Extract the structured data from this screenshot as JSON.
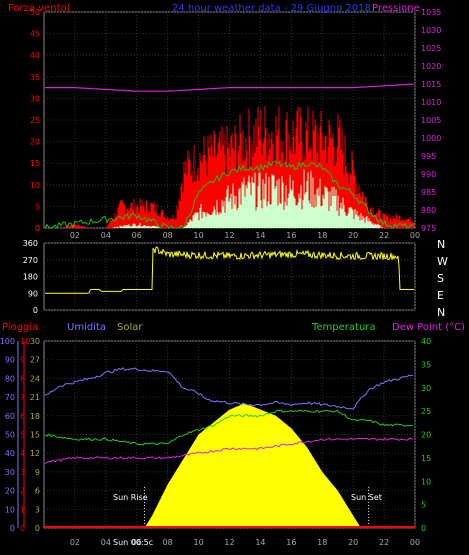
{
  "chart_data": [
    {
      "type": "line",
      "title": "24 hour weather data - 29 Giugno 2018",
      "left_label": "Forza vento(",
      "right_label": "Pressione",
      "x_ticks": [
        "02",
        "04",
        "06",
        "08",
        "10",
        "12",
        "14",
        "16",
        "18",
        "20",
        "22",
        "00"
      ],
      "yleft_ticks": [
        0,
        5,
        10,
        15,
        20,
        25,
        30,
        35,
        40,
        45,
        50
      ],
      "yright_ticks": [
        975,
        980,
        985,
        990,
        995,
        1000,
        1005,
        1010,
        1015,
        1020,
        1025,
        1030,
        1035
      ],
      "ylim_left": [
        0,
        50
      ],
      "ylim_right": [
        975,
        1035
      ],
      "colors": {
        "gust": "#ff0000",
        "wind": "#ccffcc",
        "avg": "#22bb22",
        "pressure": "#dd22dd",
        "left_axis": "#ff0000",
        "right_axis": "#dd22dd",
        "title": "#3333ff"
      },
      "series": [
        {
          "name": "Pressione",
          "x": [
            0,
            2,
            4,
            6,
            8,
            10,
            12,
            14,
            16,
            18,
            20,
            22,
            24
          ],
          "values": [
            1014,
            1014,
            1013.5,
            1013,
            1013,
            1013.5,
            1014,
            1014,
            1014,
            1014,
            1014,
            1014.5,
            1015
          ]
        },
        {
          "name": "gust",
          "x": [
            0,
            1,
            2,
            3,
            4,
            5,
            6,
            7,
            8,
            8.5,
            9,
            10,
            11,
            12,
            13,
            14,
            15,
            16,
            17,
            18,
            19,
            20,
            21,
            22,
            23,
            24
          ],
          "values": [
            0,
            0,
            1,
            0,
            0,
            6,
            6,
            6,
            3,
            3,
            15,
            19,
            20,
            21,
            24,
            26,
            26,
            25,
            25,
            24,
            24,
            15,
            6,
            3,
            3,
            2
          ]
        },
        {
          "name": "avg",
          "x": [
            0,
            4,
            6,
            8,
            9,
            10,
            11,
            12,
            13,
            14,
            15,
            16,
            17,
            18,
            19,
            20,
            21,
            22,
            24
          ],
          "values": [
            0,
            2,
            3,
            0,
            0,
            8,
            11,
            13,
            14,
            14,
            15,
            14,
            15,
            14,
            10,
            8,
            4,
            1,
            0
          ]
        },
        {
          "name": "wind",
          "x": [
            0,
            4,
            6,
            8,
            9,
            10,
            11,
            12,
            13,
            14,
            15,
            16,
            17,
            18,
            19,
            20,
            21,
            22,
            24
          ],
          "values": [
            0,
            0,
            1,
            0,
            0,
            4,
            6,
            8,
            10,
            10,
            11,
            10,
            11,
            9,
            7,
            4,
            2,
            0,
            0
          ]
        }
      ]
    },
    {
      "type": "line",
      "right_labels": [
        "N",
        "W",
        "S",
        "E",
        "N"
      ],
      "yleft_ticks": [
        0,
        90,
        180,
        270,
        360
      ],
      "ylim": [
        0,
        360
      ],
      "colors": {
        "direction": "#ffff00",
        "axis": "#ffffff"
      },
      "series": [
        {
          "name": "direction",
          "x": [
            0,
            2.9,
            3.0,
            3.6,
            3.7,
            5.0,
            5.1,
            7.0,
            7.05,
            8,
            12,
            16,
            20,
            22,
            22.95,
            23.0,
            24
          ],
          "values": [
            90,
            90,
            110,
            110,
            100,
            100,
            110,
            110,
            330,
            300,
            290,
            300,
            290,
            290,
            290,
            110,
            110
          ]
        }
      ]
    },
    {
      "type": "area",
      "labels": {
        "pioggia": "Pioggia",
        "umidita": "Umidita",
        "solar": "Solar",
        "temperatura": "Temperatura",
        "dewpoint": "Dew Point (°C)",
        "sunrise": "Sun Rise",
        "sunset": "Sun Set",
        "sunmid": "Sun 00:5c"
      },
      "x_ticks": [
        "02",
        "04",
        "06",
        "08",
        "10",
        "12",
        "14",
        "16",
        "18",
        "20",
        "22",
        "00"
      ],
      "pioggia_ticks": [
        0,
        1,
        2,
        3,
        4,
        5,
        6,
        7,
        8,
        9,
        10
      ],
      "umidita_ticks": [
        0,
        10,
        20,
        30,
        40,
        50,
        60,
        70,
        80,
        90,
        100
      ],
      "solar_ticks": [
        0,
        3,
        6,
        9,
        12,
        15,
        18,
        21,
        24,
        27,
        30
      ],
      "temp_ticks": [
        0,
        5,
        10,
        15,
        20,
        25,
        30,
        35,
        40
      ],
      "colors": {
        "pioggia": "#ff0000",
        "umidita": "#7777ff",
        "solar": "#ffff00",
        "temperatura": "#22cc22",
        "dewpoint": "#dd22dd",
        "solar_axis": "#aaaa44"
      },
      "series": [
        {
          "name": "humidity",
          "x": [
            0,
            1,
            2,
            3,
            4,
            5,
            6,
            7,
            8,
            9,
            10,
            10.5,
            11,
            12,
            13,
            14,
            15,
            16,
            17,
            18,
            19,
            20,
            21,
            22,
            23,
            24
          ],
          "values": [
            70,
            76,
            78,
            80,
            83,
            85,
            85,
            84,
            84,
            75,
            72,
            69,
            68,
            67,
            66,
            66,
            67,
            66,
            67,
            66,
            65,
            64,
            74,
            78,
            80,
            82
          ]
        },
        {
          "name": "temperature",
          "x": [
            0,
            2,
            4,
            6,
            8,
            9,
            10,
            11,
            12,
            13,
            14,
            15,
            16,
            17,
            18,
            19,
            20,
            21,
            22,
            23,
            24
          ],
          "values": [
            20,
            19,
            19,
            18,
            18,
            20,
            21,
            22,
            24,
            24,
            24,
            25,
            25,
            25,
            25,
            25,
            23,
            23,
            22,
            22,
            22
          ]
        },
        {
          "name": "dewpoint",
          "x": [
            0,
            2,
            4,
            6,
            8,
            10,
            12,
            14,
            16,
            18,
            20,
            22,
            24
          ],
          "values": [
            14,
            15,
            15,
            15,
            15,
            16,
            17,
            17,
            18,
            19,
            19,
            19,
            19
          ]
        },
        {
          "name": "solar",
          "x": [
            6.5,
            7,
            8,
            9,
            10,
            11,
            12,
            13,
            14,
            15,
            16,
            17,
            18,
            19,
            20,
            20.5
          ],
          "values": [
            0,
            2,
            7,
            11,
            15,
            17,
            19,
            20,
            19,
            18,
            16,
            13,
            9,
            6,
            2,
            0
          ]
        }
      ]
    }
  ]
}
